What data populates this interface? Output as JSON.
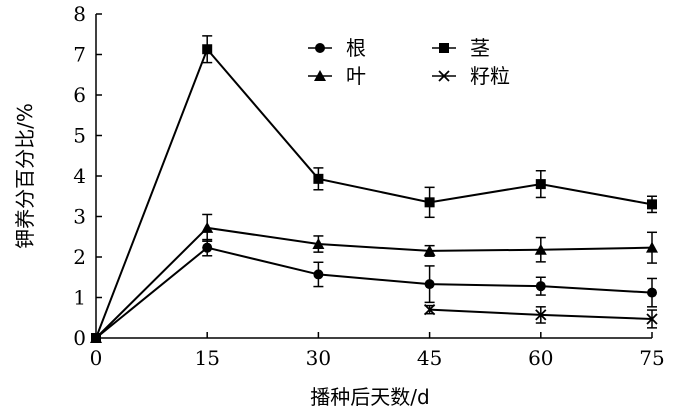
{
  "chart_data": {
    "type": "line",
    "title": "",
    "xlabel": "播种后天数/d",
    "ylabel": "钾养分百分比/%",
    "xlim": [
      0,
      75
    ],
    "ylim": [
      0,
      8
    ],
    "xticks": [
      0,
      15,
      30,
      45,
      60,
      75
    ],
    "yticks": [
      0,
      1,
      2,
      3,
      4,
      5,
      6,
      7,
      8
    ],
    "xtick_labels": [
      "0",
      "15",
      "30",
      "45",
      "60",
      "75"
    ],
    "ytick_labels": [
      "0",
      "1",
      "2",
      "3",
      "4",
      "5",
      "6",
      "7",
      "8"
    ],
    "grid": false,
    "legend_position": "top-right",
    "series": [
      {
        "name": "根",
        "marker": "circle",
        "x": [
          0,
          15,
          30,
          45,
          60,
          75
        ],
        "values": [
          0,
          2.23,
          1.57,
          1.33,
          1.28,
          1.12
        ],
        "errors": [
          0,
          0.2,
          0.3,
          0.45,
          0.22,
          0.35
        ]
      },
      {
        "name": "茎",
        "marker": "square",
        "x": [
          0,
          15,
          30,
          45,
          60,
          75
        ],
        "values": [
          0,
          7.13,
          3.93,
          3.35,
          3.8,
          3.3
        ],
        "errors": [
          0,
          0.33,
          0.27,
          0.37,
          0.33,
          0.2
        ]
      },
      {
        "name": "叶",
        "marker": "triangle",
        "x": [
          0,
          15,
          30,
          45,
          60,
          75
        ],
        "values": [
          0,
          2.72,
          2.32,
          2.15,
          2.18,
          2.23
        ],
        "errors": [
          0,
          0.33,
          0.2,
          0.13,
          0.3,
          0.38
        ]
      },
      {
        "name": "籽粒",
        "marker": "x",
        "x": [
          45,
          60,
          75
        ],
        "values": [
          0.7,
          0.57,
          0.47
        ],
        "errors": [
          0.1,
          0.2,
          0.22
        ]
      }
    ]
  }
}
